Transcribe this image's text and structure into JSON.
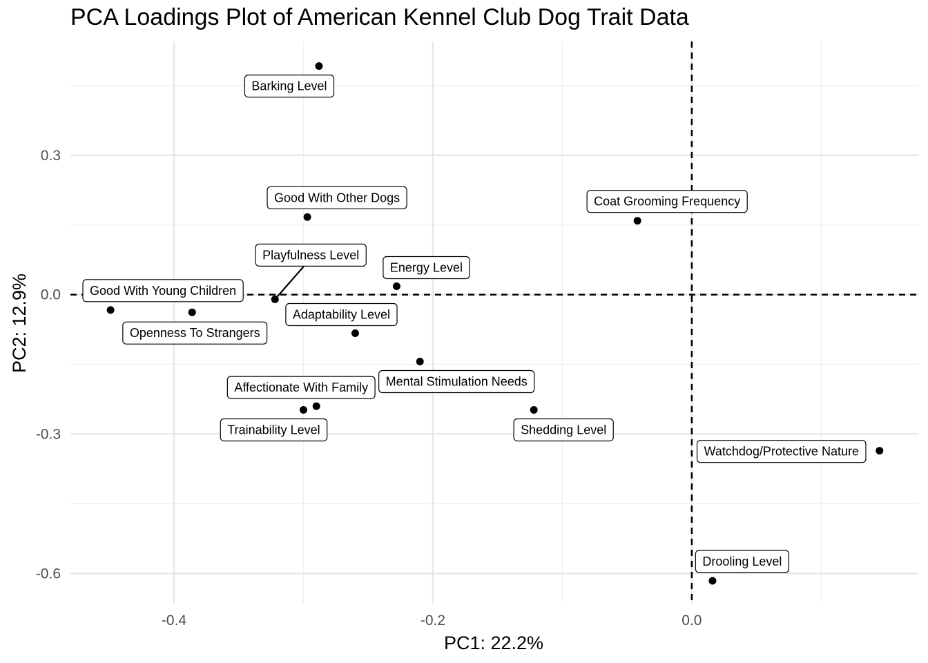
{
  "chart_data": {
    "type": "scatter",
    "title": "PCA Loadings Plot of American Kennel Club Dog Trait Data",
    "xlabel": "PC1: 22.2%",
    "ylabel": "PC2: 12.9%",
    "xlim": [
      -0.48,
      0.175
    ],
    "ylim": [
      -0.665,
      0.545
    ],
    "x_ticks": [
      -0.4,
      -0.2,
      0.0
    ],
    "x_tick_labels": [
      "-0.4",
      "-0.2",
      "0.0"
    ],
    "y_ticks": [
      0.3,
      0.0,
      -0.3,
      -0.6
    ],
    "y_tick_labels": [
      "0.3",
      "0.0",
      "-0.3",
      "-0.6"
    ],
    "grid": true,
    "reference_lines": {
      "x": 0.0,
      "y": 0.0,
      "style": "dashed"
    },
    "points": [
      {
        "label": "Barking Level",
        "x": -0.288,
        "y": 0.492
      },
      {
        "label": "Good With Other Dogs",
        "x": -0.297,
        "y": 0.167
      },
      {
        "label": "Coat Grooming Frequency",
        "x": -0.042,
        "y": 0.159
      },
      {
        "label": "Playfulness Level",
        "x": -0.322,
        "y": -0.01
      },
      {
        "label": "Energy Level",
        "x": -0.228,
        "y": 0.018
      },
      {
        "label": "Good With Young Children",
        "x": -0.449,
        "y": -0.033
      },
      {
        "label": "Openness To Strangers",
        "x": -0.386,
        "y": -0.038
      },
      {
        "label": "Adaptability Level",
        "x": -0.26,
        "y": -0.083
      },
      {
        "label": "Mental Stimulation Needs",
        "x": -0.21,
        "y": -0.144
      },
      {
        "label": "Affectionate With Family",
        "x": -0.29,
        "y": -0.24
      },
      {
        "label": "Trainability Level",
        "x": -0.3,
        "y": -0.248
      },
      {
        "label": "Shedding Level",
        "x": -0.122,
        "y": -0.248
      },
      {
        "label": "Watchdog/Protective Nature",
        "x": 0.145,
        "y": -0.336
      },
      {
        "label": "Drooling Level",
        "x": 0.016,
        "y": -0.616
      }
    ]
  }
}
